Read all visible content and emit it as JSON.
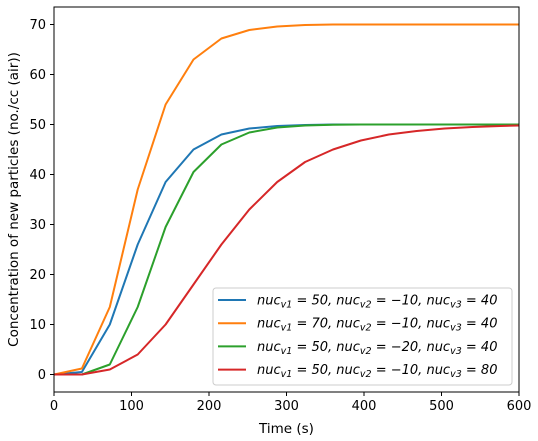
{
  "chart_data": {
    "type": "line",
    "title": "",
    "xlabel": "Time (s)",
    "ylabel": "Concentration of new particles (no./cc (air))",
    "xlim": [
      0,
      600
    ],
    "ylim": [
      -3.5,
      73.5
    ],
    "xticks": [
      0,
      100,
      200,
      300,
      400,
      500,
      600
    ],
    "yticks": [
      0,
      10,
      20,
      30,
      40,
      50,
      60,
      70
    ],
    "grid": false,
    "legend_position": "lower-right",
    "x": [
      0,
      36,
      72,
      108,
      144,
      180,
      216,
      252,
      288,
      324,
      360,
      396,
      432,
      468,
      504,
      540,
      576,
      600
    ],
    "series": [
      {
        "name": "nuc_{v1} = 50, nuc_{v2} = −10, nuc_{v3} = 40",
        "legend_parts": [
          "nuc",
          "v1",
          " = 50, ",
          "nuc",
          "v2",
          " = −10, ",
          "nuc",
          "v3",
          " = 40"
        ],
        "color": "#1f77b4",
        "values": [
          0,
          0.5,
          10,
          26,
          38.5,
          45,
          48,
          49.2,
          49.7,
          49.9,
          50,
          50,
          50,
          50,
          50,
          50,
          50,
          50
        ]
      },
      {
        "name": "nuc_{v1} = 70, nuc_{v2} = −10, nuc_{v3} = 40",
        "legend_parts": [
          "nuc",
          "v1",
          " = 70, ",
          "nuc",
          "v2",
          " = −10, ",
          "nuc",
          "v3",
          " = 40"
        ],
        "color": "#ff7f0e",
        "values": [
          0,
          1.2,
          13.5,
          37,
          54,
          63,
          67.2,
          68.9,
          69.6,
          69.9,
          70,
          70,
          70,
          70,
          70,
          70,
          70,
          70
        ]
      },
      {
        "name": "nuc_{v1} = 50, nuc_{v2} = −20, nuc_{v3} = 40",
        "legend_parts": [
          "nuc",
          "v1",
          " = 50, ",
          "nuc",
          "v2",
          " = −20, ",
          "nuc",
          "v3",
          " = 40"
        ],
        "color": "#2ca02c",
        "values": [
          0,
          0,
          2,
          13.5,
          29.5,
          40.5,
          46,
          48.4,
          49.4,
          49.8,
          49.95,
          50,
          50,
          50,
          50,
          50,
          50,
          50
        ]
      },
      {
        "name": "nuc_{v1} = 50, nuc_{v2} = −10, nuc_{v3} = 80",
        "legend_parts": [
          "nuc",
          "v1",
          " = 50, ",
          "nuc",
          "v2",
          " = −10, ",
          "nuc",
          "v3",
          " = 80"
        ],
        "color": "#d62728",
        "values": [
          0,
          0,
          1,
          4,
          10,
          18,
          26,
          33,
          38.5,
          42.5,
          45,
          46.8,
          48,
          48.7,
          49.2,
          49.5,
          49.7,
          49.8
        ]
      }
    ]
  }
}
